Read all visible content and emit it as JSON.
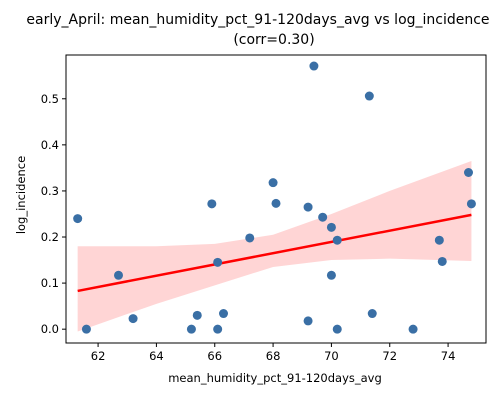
{
  "chart_data": {
    "type": "scatter",
    "title": "early_April: mean_humidity_pct_91-120days_avg vs log_incidence",
    "subtitle": "(corr=0.30)",
    "xlabel": "mean_humidity_pct_91-120days_avg",
    "ylabel": "log_incidence",
    "xlim": [
      60.9,
      75.3
    ],
    "ylim": [
      -0.03,
      0.595
    ],
    "xticks": [
      62,
      64,
      66,
      68,
      70,
      72,
      74
    ],
    "yticks": [
      0.0,
      0.1,
      0.2,
      0.3,
      0.4,
      0.5
    ],
    "ytick_labels": [
      "0.0",
      "0.1",
      "0.2",
      "0.3",
      "0.4",
      "0.5"
    ],
    "grid": false,
    "points": [
      {
        "x": 61.3,
        "y": 0.24
      },
      {
        "x": 61.6,
        "y": 0.0
      },
      {
        "x": 62.7,
        "y": 0.117
      },
      {
        "x": 63.2,
        "y": 0.023
      },
      {
        "x": 65.2,
        "y": 0.0
      },
      {
        "x": 65.4,
        "y": 0.03
      },
      {
        "x": 65.9,
        "y": 0.272
      },
      {
        "x": 66.1,
        "y": 0.0
      },
      {
        "x": 66.1,
        "y": 0.145
      },
      {
        "x": 66.3,
        "y": 0.034
      },
      {
        "x": 67.2,
        "y": 0.198
      },
      {
        "x": 68.0,
        "y": 0.318
      },
      {
        "x": 68.1,
        "y": 0.273
      },
      {
        "x": 69.2,
        "y": 0.265
      },
      {
        "x": 69.2,
        "y": 0.018
      },
      {
        "x": 69.4,
        "y": 0.571
      },
      {
        "x": 69.7,
        "y": 0.243
      },
      {
        "x": 70.0,
        "y": 0.221
      },
      {
        "x": 70.0,
        "y": 0.117
      },
      {
        "x": 70.2,
        "y": 0.193
      },
      {
        "x": 70.2,
        "y": 0.0
      },
      {
        "x": 71.3,
        "y": 0.506
      },
      {
        "x": 71.4,
        "y": 0.034
      },
      {
        "x": 72.8,
        "y": 0.0
      },
      {
        "x": 73.7,
        "y": 0.193
      },
      {
        "x": 73.8,
        "y": 0.147
      },
      {
        "x": 74.7,
        "y": 0.34
      },
      {
        "x": 74.8,
        "y": 0.272
      }
    ],
    "regression_line": {
      "x": [
        61.3,
        74.8
      ],
      "y": [
        0.083,
        0.248
      ]
    },
    "confidence_band": {
      "x": [
        61.3,
        64,
        66,
        68,
        70,
        72,
        74.8
      ],
      "lower": [
        -0.005,
        0.055,
        0.095,
        0.135,
        0.15,
        0.153,
        0.148
      ],
      "upper": [
        0.18,
        0.18,
        0.185,
        0.205,
        0.25,
        0.3,
        0.365
      ]
    },
    "colors": {
      "points": "#3a6fa5",
      "regression_line": "#ff0000",
      "confidence_band": "#ffb3b3"
    }
  }
}
